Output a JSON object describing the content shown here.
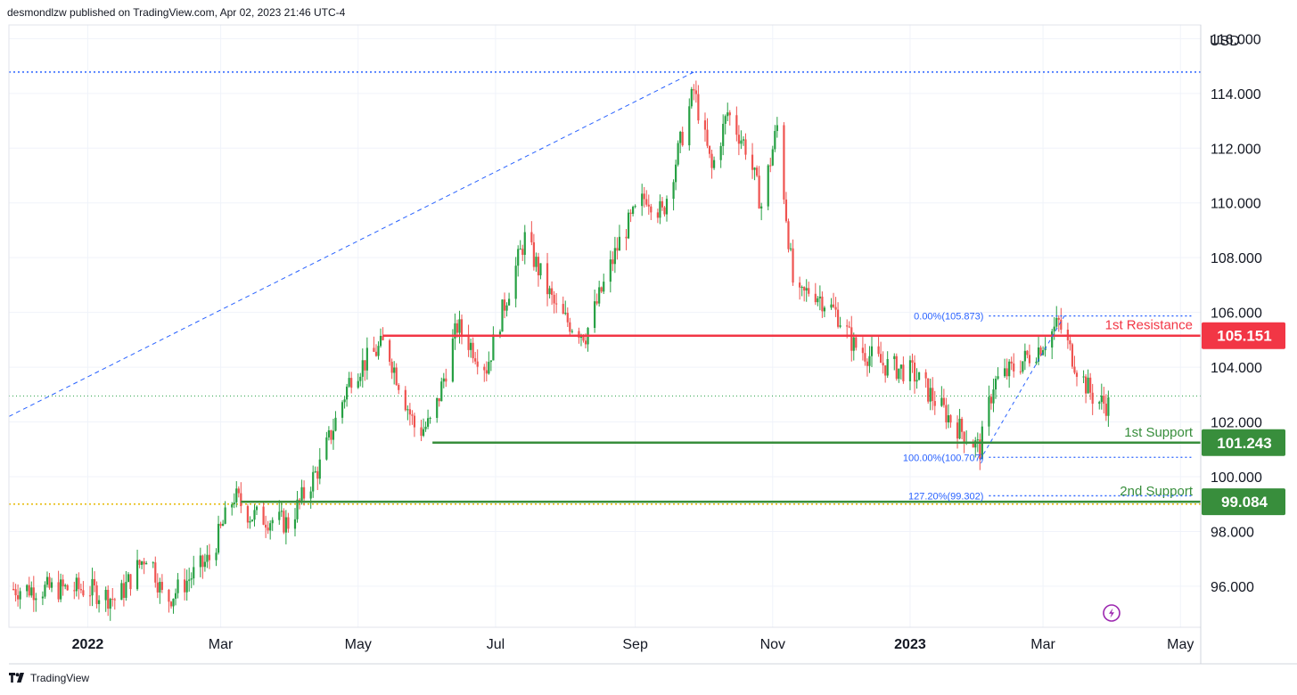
{
  "header": {
    "publisher_line": "desmondlzw published on TradingView.com, Apr 02, 2023 21:46 UTC-4"
  },
  "footer": {
    "brand": "TradingView"
  },
  "colors": {
    "up": "#26a043",
    "down": "#ef5350",
    "resistance": "#f23645",
    "support": "#388e3c",
    "fib": "#2962ff",
    "yellow_line": "#e6b800",
    "grid": "#f0f3fa"
  },
  "chart_data": {
    "type": "candlestick",
    "currency": "USD",
    "y_ticks": [
      "96.000",
      "98.000",
      "100.000",
      "102.000",
      "104.000",
      "106.000",
      "108.000",
      "110.000",
      "112.000",
      "114.000",
      "116.000"
    ],
    "y_range": [
      94.5,
      116.5
    ],
    "x_ticks": [
      {
        "label": "2022",
        "date": "2022-01-01",
        "bold": true
      },
      {
        "label": "Mar",
        "date": "2022-03-01",
        "bold": false
      },
      {
        "label": "May",
        "date": "2022-05-01",
        "bold": false
      },
      {
        "label": "Jul",
        "date": "2022-07-01",
        "bold": false
      },
      {
        "label": "Sep",
        "date": "2022-09-01",
        "bold": false
      },
      {
        "label": "Nov",
        "date": "2022-11-01",
        "bold": false
      },
      {
        "label": "2023",
        "date": "2023-01-01",
        "bold": true
      },
      {
        "label": "Mar",
        "date": "2023-03-01",
        "bold": false
      },
      {
        "label": "May",
        "date": "2023-05-01",
        "bold": false
      }
    ],
    "x_range": [
      "2021-11-27",
      "2023-05-10"
    ],
    "levels": [
      {
        "name": "1st Resistance",
        "value": 105.151,
        "label": "105.151",
        "role": "resistance",
        "start": "2022-05-12"
      },
      {
        "name": "1st Support",
        "value": 101.243,
        "label": "101.243",
        "role": "support",
        "start": "2022-06-03"
      },
      {
        "name": "2nd Support",
        "value": 99.084,
        "label": "99.084",
        "role": "support",
        "start": "2022-03-10"
      }
    ],
    "fib_levels": [
      {
        "label": "0.00%(105.873)",
        "value": 105.873
      },
      {
        "label": "100.00%(100.707)",
        "value": 100.707
      },
      {
        "label": "127.20%(99.302)",
        "value": 99.302
      }
    ],
    "high_line": 114.778,
    "yellow_line": 99.0,
    "current_price_line": 102.95,
    "anchor_points": [
      [
        "2022-01-01",
        95.9
      ],
      [
        "2022-01-14",
        95.5
      ],
      [
        "2022-01-28",
        97.3
      ],
      [
        "2022-02-04",
        95.4
      ],
      [
        "2022-02-14",
        96.2
      ],
      [
        "2022-02-24",
        97.0
      ],
      [
        "2022-03-07",
        99.3
      ],
      [
        "2022-03-14",
        98.6
      ],
      [
        "2022-03-31",
        98.3
      ],
      [
        "2022-04-14",
        100.4
      ],
      [
        "2022-04-28",
        103.7
      ],
      [
        "2022-05-13",
        104.9
      ],
      [
        "2022-05-27",
        101.6
      ],
      [
        "2022-06-03",
        102.0
      ],
      [
        "2022-06-14",
        105.5
      ],
      [
        "2022-06-27",
        104.0
      ],
      [
        "2022-07-06",
        106.6
      ],
      [
        "2022-07-14",
        108.7
      ],
      [
        "2022-07-29",
        105.9
      ],
      [
        "2022-08-10",
        105.2
      ],
      [
        "2022-08-26",
        108.8
      ],
      [
        "2022-09-06",
        110.3
      ],
      [
        "2022-09-13",
        109.6
      ],
      [
        "2022-09-27",
        114.1
      ],
      [
        "2022-10-05",
        111.2
      ],
      [
        "2022-10-12",
        113.3
      ],
      [
        "2022-10-21",
        111.9
      ],
      [
        "2022-10-27",
        109.9
      ],
      [
        "2022-11-03",
        112.8
      ],
      [
        "2022-11-11",
        106.3
      ],
      [
        "2022-11-18",
        106.9
      ],
      [
        "2022-11-30",
        105.9
      ],
      [
        "2022-12-07",
        104.8
      ],
      [
        "2022-12-20",
        104.1
      ],
      [
        "2023-01-02",
        103.8
      ],
      [
        "2023-01-10",
        103.0
      ],
      [
        "2023-01-20",
        102.0
      ],
      [
        "2023-02-01",
        101.0
      ],
      [
        "2023-02-07",
        103.4
      ],
      [
        "2023-02-15",
        103.9
      ],
      [
        "2023-02-27",
        104.7
      ],
      [
        "2023-03-08",
        105.6
      ],
      [
        "2023-03-17",
        103.8
      ],
      [
        "2023-03-24",
        102.8
      ],
      [
        "2023-03-31",
        102.6
      ]
    ]
  }
}
